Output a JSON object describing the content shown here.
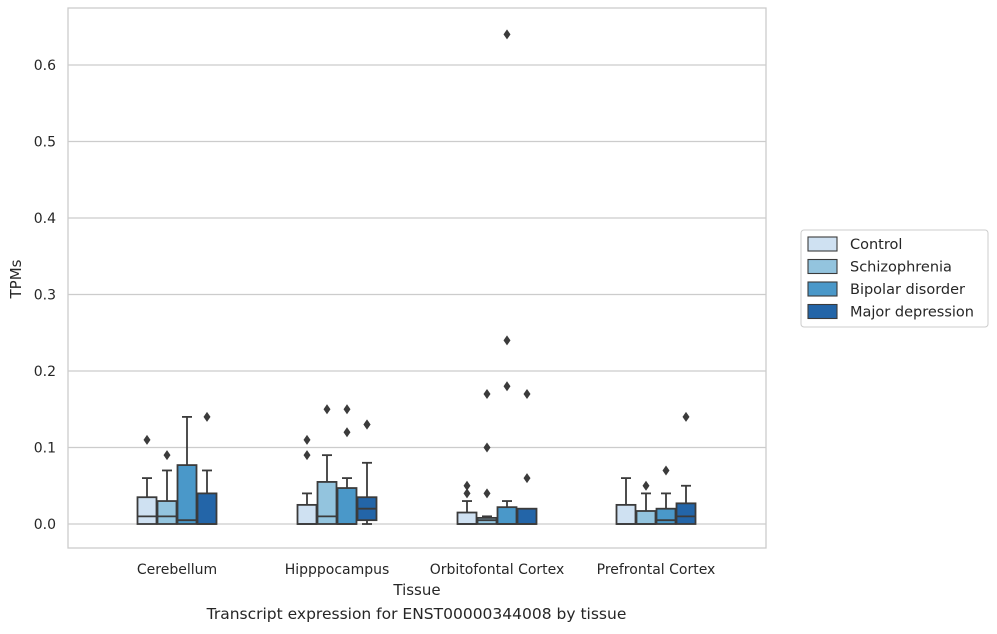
{
  "chart_data": {
    "type": "box",
    "xlabel": "Tissue",
    "ylabel": "TPMs",
    "caption": "Transcript expression for ENST00000344008 by tissue",
    "ylim": [
      -0.03,
      0.675
    ],
    "yticks": [
      0.0,
      0.1,
      0.2,
      0.3,
      0.4,
      0.5,
      0.6
    ],
    "ytick_labels": [
      "0.0",
      "0.1",
      "0.2",
      "0.3",
      "0.4",
      "0.5",
      "0.6"
    ],
    "grid": "horizontal",
    "legend_position": "right",
    "categories": [
      "Cerebellum",
      "Hipppocampus",
      "Orbitofontal Cortex",
      "Prefrontal Cortex"
    ],
    "series": [
      {
        "name": "Control",
        "color": "#cfe1f2",
        "boxes": [
          {
            "whisker_low": 0.0,
            "q1": 0.0,
            "median": 0.01,
            "q3": 0.035,
            "whisker_high": 0.06,
            "outliers": [
              0.11
            ]
          },
          {
            "whisker_low": 0.0,
            "q1": 0.0,
            "median": 0.0,
            "q3": 0.025,
            "whisker_high": 0.04,
            "outliers": [
              0.09,
              0.11
            ]
          },
          {
            "whisker_low": 0.0,
            "q1": 0.0,
            "median": 0.0,
            "q3": 0.015,
            "whisker_high": 0.03,
            "outliers": [
              0.04,
              0.05
            ]
          },
          {
            "whisker_low": 0.0,
            "q1": 0.0,
            "median": 0.0,
            "q3": 0.025,
            "whisker_high": 0.06,
            "outliers": []
          }
        ]
      },
      {
        "name": "Schizophrenia",
        "color": "#93c4de",
        "boxes": [
          {
            "whisker_low": 0.0,
            "q1": 0.0,
            "median": 0.01,
            "q3": 0.03,
            "whisker_high": 0.07,
            "outliers": [
              0.09
            ]
          },
          {
            "whisker_low": 0.0,
            "q1": 0.0,
            "median": 0.01,
            "q3": 0.055,
            "whisker_high": 0.09,
            "outliers": [
              0.15
            ]
          },
          {
            "whisker_low": 0.0,
            "q1": 0.0,
            "median": 0.005,
            "q3": 0.008,
            "whisker_high": 0.01,
            "outliers": [
              0.04,
              0.1,
              0.17
            ]
          },
          {
            "whisker_low": 0.0,
            "q1": 0.0,
            "median": 0.0,
            "q3": 0.017,
            "whisker_high": 0.04,
            "outliers": [
              0.05
            ]
          }
        ]
      },
      {
        "name": "Bipolar disorder",
        "color": "#4a98c9",
        "boxes": [
          {
            "whisker_low": 0.0,
            "q1": 0.0,
            "median": 0.005,
            "q3": 0.077,
            "whisker_high": 0.14,
            "outliers": []
          },
          {
            "whisker_low": 0.0,
            "q1": 0.0,
            "median": 0.0,
            "q3": 0.047,
            "whisker_high": 0.06,
            "outliers": [
              0.12,
              0.15
            ]
          },
          {
            "whisker_low": 0.0,
            "q1": 0.0,
            "median": 0.0,
            "q3": 0.022,
            "whisker_high": 0.03,
            "outliers": [
              0.18,
              0.24,
              0.64
            ]
          },
          {
            "whisker_low": 0.0,
            "q1": 0.0,
            "median": 0.005,
            "q3": 0.02,
            "whisker_high": 0.04,
            "outliers": [
              0.07
            ]
          }
        ]
      },
      {
        "name": "Major depression",
        "color": "#2365a8",
        "boxes": [
          {
            "whisker_low": 0.0,
            "q1": 0.0,
            "median": 0.0,
            "q3": 0.04,
            "whisker_high": 0.07,
            "outliers": [
              0.14
            ]
          },
          {
            "whisker_low": 0.0,
            "q1": 0.005,
            "median": 0.02,
            "q3": 0.035,
            "whisker_high": 0.08,
            "outliers": [
              0.13,
              0.13
            ]
          },
          {
            "whisker_low": 0.0,
            "q1": 0.0,
            "median": 0.0,
            "q3": 0.02,
            "whisker_high": 0.02,
            "outliers": [
              0.06,
              0.17
            ]
          },
          {
            "whisker_low": 0.0,
            "q1": 0.0,
            "median": 0.01,
            "q3": 0.027,
            "whisker_high": 0.05,
            "outliers": [
              0.14
            ]
          }
        ]
      }
    ],
    "colors": {
      "grid": "#cccccc",
      "frame": "#cccccc",
      "box_edge": "#3b3b3b"
    }
  }
}
